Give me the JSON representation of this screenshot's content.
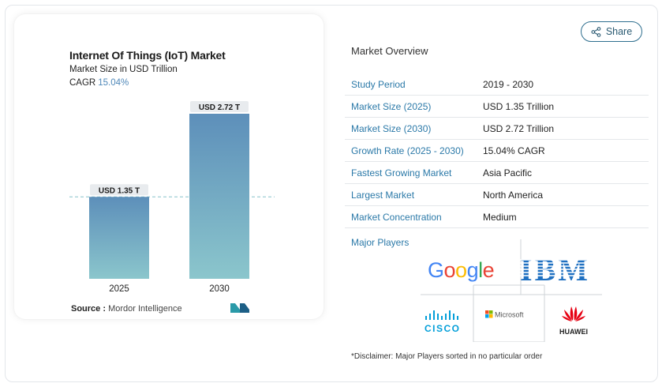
{
  "chart": {
    "title": "Internet Of Things (IoT) Market",
    "subtitle": "Market Size in USD Trillion",
    "cagr_label": "CAGR",
    "cagr_value": "15.04%",
    "source_label": "Source :",
    "source_name": "Mordor Intelligence",
    "colors": {
      "bar_top": "#5d8fba",
      "bar_bottom": "#8bc6cc",
      "dashed_line": "#88c2cc",
      "label_bg": "#e8ebee"
    }
  },
  "chart_data": {
    "type": "bar",
    "categories": [
      "2025",
      "2030"
    ],
    "values": [
      1.35,
      2.72
    ],
    "data_labels": [
      "USD 1.35 T",
      "USD 2.72 T"
    ],
    "title": "Internet Of Things (IoT) Market",
    "subtitle": "Market Size in USD Trillion",
    "xlabel": "",
    "ylabel": "",
    "ylim": [
      0,
      2.72
    ],
    "grid": false,
    "reference_line": 1.35
  },
  "share": {
    "label": "Share",
    "icon": "share-icon"
  },
  "overview": {
    "title": "Market Overview",
    "rows": [
      {
        "label": "Study Period",
        "value": "2019 - 2030"
      },
      {
        "label": "Market Size (2025)",
        "value": "USD 1.35 Trillion"
      },
      {
        "label": "Market Size (2030)",
        "value": "USD 2.72 Trillion"
      },
      {
        "label": "Growth Rate (2025 - 2030)",
        "value": "15.04% CAGR"
      },
      {
        "label": "Fastest Growing Market",
        "value": "Asia Pacific"
      },
      {
        "label": "Largest Market",
        "value": "North America"
      },
      {
        "label": "Market Concentration",
        "value": "Medium"
      }
    ],
    "players_label": "Major Players",
    "players": [
      "Google",
      "IBM",
      "Cisco",
      "Microsoft",
      "Huawei"
    ],
    "logo_text": {
      "google": "Google",
      "ibm": "IBM",
      "cisco": "CISCO",
      "microsoft": "Microsoft",
      "huawei": "HUAWEI"
    },
    "disclaimer": "*Disclaimer: Major Players sorted in no particular order"
  }
}
